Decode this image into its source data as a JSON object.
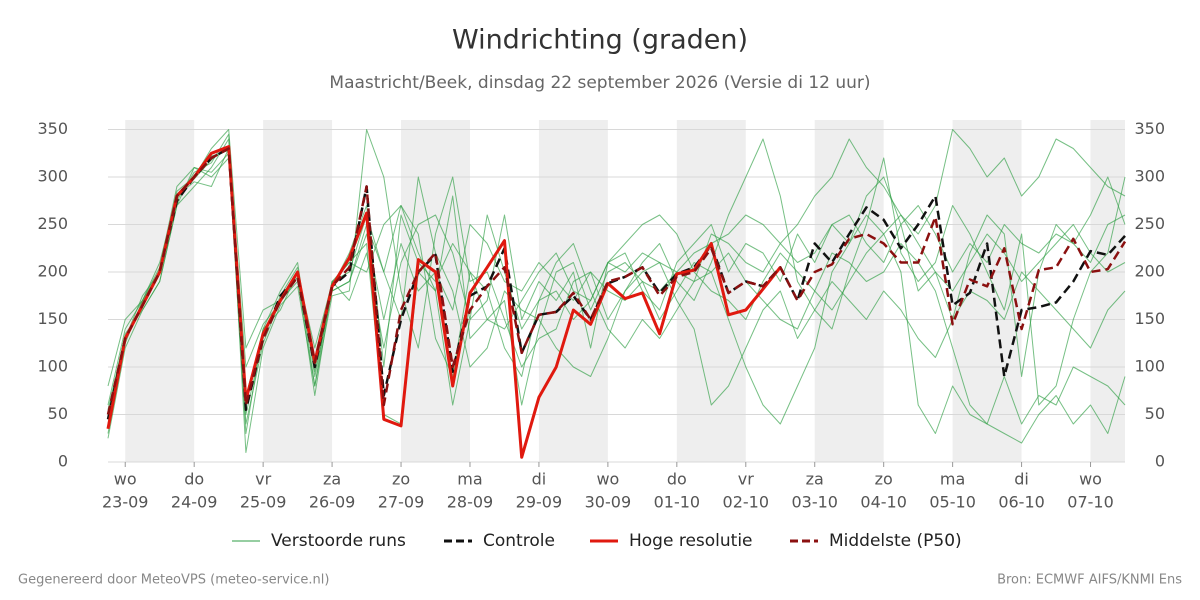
{
  "chart_data": {
    "type": "line",
    "title": "Windrichting (graden)",
    "subtitle": "Maastricht/Beek, dinsdag 22 september 2026 (Versie di 12 uur)",
    "footer_left": "Gegenereerd door MeteoVPS (meteo-service.nl)",
    "footer_right": "Bron: ECMWF AIFS/KNMI Ens",
    "xlim": [
      -0.25,
      14.5
    ],
    "ylim": [
      0,
      360
    ],
    "yticks": [
      0,
      50,
      100,
      150,
      200,
      250,
      300,
      350
    ],
    "grid": true,
    "shade_alternate_days": true,
    "xticks": [
      {
        "value": 0,
        "label": [
          "wo",
          "23-09"
        ]
      },
      {
        "value": 1,
        "label": [
          "do",
          "24-09"
        ]
      },
      {
        "value": 2,
        "label": [
          "vr",
          "25-09"
        ]
      },
      {
        "value": 3,
        "label": [
          "za",
          "26-09"
        ]
      },
      {
        "value": 4,
        "label": [
          "zo",
          "27-09"
        ]
      },
      {
        "value": 5,
        "label": [
          "ma",
          "28-09"
        ]
      },
      {
        "value": 6,
        "label": [
          "di",
          "29-09"
        ]
      },
      {
        "value": 7,
        "label": [
          "wo",
          "30-09"
        ]
      },
      {
        "value": 8,
        "label": [
          "do",
          "01-10"
        ]
      },
      {
        "value": 9,
        "label": [
          "vr",
          "02-10"
        ]
      },
      {
        "value": 10,
        "label": [
          "za",
          "03-10"
        ]
      },
      {
        "value": 11,
        "label": [
          "zo",
          "04-10"
        ]
      },
      {
        "value": 12,
        "label": [
          "ma",
          "05-10"
        ]
      },
      {
        "value": 13,
        "label": [
          "di",
          "06-10"
        ]
      },
      {
        "value": 14,
        "label": [
          "wo",
          "07-10"
        ]
      }
    ],
    "x": [
      -0.25,
      0,
      0.25,
      0.5,
      0.75,
      1,
      1.25,
      1.5,
      1.75,
      2,
      2.25,
      2.5,
      2.75,
      3,
      3.25,
      3.5,
      3.75,
      4,
      4.25,
      4.5,
      4.75,
      5,
      5.25,
      5.5,
      5.75,
      6,
      6.25,
      6.5,
      6.75,
      7,
      7.25,
      7.5,
      7.75,
      8,
      8.25,
      8.5,
      8.75,
      9,
      9.25,
      9.5,
      9.75,
      10,
      10.25,
      10.5,
      10.75,
      11,
      11.25,
      11.5,
      11.75,
      12,
      12.25,
      12.5,
      12.75,
      13,
      13.25,
      13.5,
      13.75,
      14,
      14.25,
      14.5
    ],
    "series": [
      {
        "name": "Verstoorde runs",
        "color": "#2e9e44",
        "dash": false,
        "members": [
          [
            60,
            140,
            170,
            205,
            290,
            310,
            300,
            320,
            30,
            140,
            180,
            210,
            90,
            180,
            190,
            250,
            200,
            270,
            220,
            180,
            60,
            150,
            170,
            260,
            150,
            190,
            170,
            200,
            120,
            210,
            220,
            180,
            160,
            210,
            230,
            250,
            200,
            230,
            220,
            190,
            240,
            210,
            250,
            230,
            280,
            300,
            250,
            180,
            200,
            150,
            220,
            260,
            240,
            90,
            200,
            250,
            230,
            260,
            300,
            250
          ],
          [
            25,
            120,
            160,
            190,
            270,
            290,
            310,
            340,
            10,
            120,
            165,
            185,
            80,
            175,
            180,
            350,
            300,
            180,
            120,
            240,
            300,
            190,
            200,
            150,
            100,
            130,
            140,
            190,
            200,
            150,
            180,
            210,
            230,
            190,
            170,
            210,
            260,
            300,
            340,
            280,
            190,
            160,
            140,
            200,
            250,
            320,
            220,
            190,
            210,
            270,
            240,
            200,
            160,
            240,
            60,
            80,
            150,
            200,
            220,
            300
          ],
          [
            80,
            150,
            170,
            200,
            285,
            300,
            330,
            350,
            120,
            160,
            170,
            200,
            80,
            190,
            210,
            230,
            50,
            40,
            200,
            180,
            280,
            130,
            150,
            170,
            60,
            140,
            200,
            210,
            160,
            200,
            210,
            190,
            150,
            180,
            210,
            200,
            150,
            100,
            60,
            40,
            80,
            120,
            200,
            230,
            260,
            240,
            200,
            60,
            30,
            80,
            50,
            40,
            90,
            40,
            70,
            60,
            100,
            90,
            80,
            60
          ],
          [
            30,
            125,
            170,
            210,
            280,
            295,
            290,
            330,
            40,
            125,
            170,
            190,
            100,
            190,
            170,
            220,
            120,
            210,
            250,
            260,
            220,
            150,
            260,
            200,
            140,
            170,
            180,
            150,
            170,
            210,
            200,
            220,
            210,
            200,
            190,
            240,
            230,
            210,
            200,
            230,
            210,
            220,
            250,
            260,
            230,
            210,
            250,
            270,
            240,
            200,
            230,
            210,
            250,
            230,
            220,
            240,
            230,
            210,
            250,
            260
          ],
          [
            50,
            135,
            160,
            190,
            270,
            310,
            305,
            325,
            60,
            140,
            160,
            200,
            110,
            190,
            200,
            260,
            200,
            150,
            300,
            220,
            180,
            100,
            120,
            180,
            160,
            150,
            120,
            100,
            90,
            130,
            180,
            200,
            210,
            170,
            140,
            60,
            80,
            120,
            160,
            180,
            130,
            160,
            190,
            170,
            150,
            180,
            160,
            130,
            110,
            150,
            180,
            170,
            150,
            200,
            180,
            160,
            140,
            120,
            160,
            180
          ],
          [
            40,
            130,
            175,
            200,
            275,
            305,
            315,
            345,
            50,
            130,
            175,
            205,
            95,
            180,
            190,
            240,
            150,
            230,
            180,
            200,
            160,
            250,
            230,
            190,
            180,
            210,
            190,
            170,
            200,
            180,
            170,
            190,
            180,
            200,
            220,
            230,
            240,
            260,
            250,
            230,
            250,
            280,
            300,
            340,
            310,
            290,
            260,
            240,
            270,
            350,
            330,
            300,
            320,
            280,
            300,
            340,
            330,
            310,
            290,
            280
          ],
          [
            45,
            128,
            168,
            198,
            282,
            298,
            318,
            332,
            70,
            135,
            172,
            198,
            120,
            188,
            210,
            200,
            250,
            270,
            240,
            130,
            90,
            200,
            180,
            120,
            90,
            170,
            210,
            230,
            180,
            140,
            120,
            150,
            130,
            160,
            190,
            200,
            220,
            190,
            170,
            150,
            140,
            180,
            220,
            210,
            190,
            200,
            230,
            210,
            180,
            120,
            60,
            40,
            30,
            20,
            50,
            70,
            40,
            60,
            30,
            90
          ],
          [
            55,
            132,
            163,
            202,
            278,
            302,
            322,
            328,
            100,
            145,
            168,
            195,
            70,
            185,
            220,
            270,
            100,
            260,
            210,
            190,
            230,
            200,
            150,
            140,
            170,
            200,
            220,
            180,
            170,
            210,
            230,
            250,
            260,
            240,
            200,
            180,
            170,
            150,
            190,
            220,
            200,
            180,
            160,
            190,
            220,
            240,
            260,
            230,
            200,
            180,
            210,
            240,
            220,
            190,
            210,
            230,
            250,
            220,
            200,
            210
          ]
        ]
      },
      {
        "name": "Controle",
        "color": "#111111",
        "dash": true,
        "values": [
          45,
          130,
          165,
          200,
          275,
          300,
          320,
          330,
          55,
          130,
          175,
          195,
          100,
          185,
          200,
          290,
          70,
          150,
          200,
          218,
          95,
          175,
          185,
          225,
          115,
          155,
          158,
          175,
          150,
          188,
          195,
          205,
          178,
          198,
          205,
          228,
          178,
          190,
          185,
          205,
          170,
          230,
          210,
          240,
          268,
          255,
          225,
          250,
          280,
          165,
          178,
          230,
          90,
          160,
          163,
          168,
          190,
          222,
          218,
          238
        ]
      },
      {
        "name": "Hoge resolutie",
        "color": "#e0190f",
        "dash": false,
        "values": [
          35,
          130,
          165,
          200,
          280,
          300,
          325,
          332,
          65,
          135,
          170,
          200,
          105,
          185,
          215,
          262,
          45,
          38,
          213,
          200,
          80,
          178,
          205,
          233,
          5,
          68,
          100,
          160,
          145,
          188,
          172,
          178,
          135,
          198,
          202,
          230,
          155,
          160,
          182,
          205,
          null,
          null,
          null,
          null,
          null,
          null,
          null,
          null,
          null,
          null,
          null,
          null,
          null,
          null,
          null,
          null,
          null,
          null,
          null,
          null
        ]
      },
      {
        "name": "Middelste (P50)",
        "color": "#8b1010",
        "dash": true,
        "values": [
          50,
          130,
          165,
          200,
          280,
          300,
          320,
          330,
          60,
          130,
          170,
          195,
          105,
          185,
          205,
          290,
          60,
          160,
          200,
          220,
          100,
          160,
          185,
          205,
          115,
          155,
          158,
          178,
          150,
          190,
          195,
          205,
          175,
          195,
          200,
          225,
          178,
          190,
          185,
          205,
          170,
          200,
          208,
          235,
          240,
          230,
          210,
          210,
          258,
          145,
          192,
          185,
          225,
          140,
          202,
          205,
          235,
          200,
          203,
          232
        ]
      }
    ]
  }
}
